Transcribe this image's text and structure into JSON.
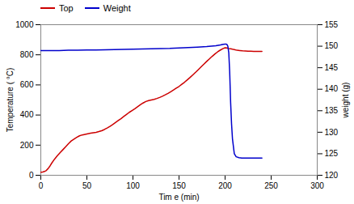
{
  "chart_data": {
    "type": "line",
    "xlabel": "Tim e (min)",
    "ylabel": "Temperature ( °C)",
    "y2label": "weight (g)",
    "xlim": [
      0,
      300
    ],
    "ylim": [
      0,
      1000
    ],
    "y2lim": [
      120,
      155
    ],
    "xticks": [
      0,
      50,
      100,
      150,
      200,
      250,
      300
    ],
    "yticks": [
      0,
      200,
      400,
      600,
      800,
      1000
    ],
    "y2ticks": [
      120,
      125,
      130,
      135,
      140,
      145,
      150,
      155
    ],
    "series": [
      {
        "name": "Top",
        "color": "#cc0000",
        "x": [
          0,
          2,
          4,
          6,
          8,
          10,
          12,
          15,
          18,
          21,
          24,
          27,
          30,
          33,
          36,
          39,
          42,
          45,
          48,
          51,
          54,
          57,
          60,
          63,
          66,
          69,
          72,
          75,
          78,
          81,
          84,
          87,
          90,
          93,
          96,
          99,
          102,
          105,
          108,
          111,
          114,
          117,
          120,
          123,
          126,
          129,
          132,
          135,
          138,
          141,
          144,
          147,
          150,
          153,
          156,
          159,
          162,
          165,
          168,
          171,
          174,
          177,
          180,
          183,
          186,
          189,
          192,
          195,
          198,
          200,
          202,
          204,
          206,
          208,
          210,
          213,
          216,
          219,
          222,
          225,
          228,
          231,
          234,
          237,
          240
        ],
        "values": [
          20,
          22,
          25,
          32,
          45,
          62,
          82,
          108,
          130,
          150,
          170,
          190,
          210,
          228,
          240,
          252,
          262,
          268,
          272,
          276,
          279,
          282,
          285,
          290,
          296,
          304,
          314,
          325,
          337,
          350,
          363,
          376,
          390,
          404,
          418,
          430,
          442,
          455,
          468,
          480,
          490,
          496,
          500,
          504,
          510,
          517,
          525,
          534,
          544,
          555,
          566,
          578,
          590,
          604,
          618,
          634,
          650,
          667,
          684,
          702,
          720,
          738,
          756,
          773,
          790,
          806,
          820,
          832,
          842,
          847,
          845,
          842,
          840,
          837,
          835,
          830,
          828,
          826,
          825,
          824,
          824,
          823,
          823,
          823,
          823
        ]
      },
      {
        "name": "Weight",
        "color": "#0000cc",
        "axis": "y2",
        "x": [
          0,
          10,
          20,
          30,
          40,
          50,
          60,
          70,
          80,
          90,
          100,
          110,
          120,
          130,
          140,
          150,
          160,
          170,
          180,
          190,
          195,
          198,
          200,
          201,
          202,
          203,
          204,
          205,
          206,
          207,
          208,
          210,
          212,
          215,
          218,
          220,
          225,
          230,
          235,
          240
        ],
        "values": [
          149.0,
          149.0,
          149.0,
          149.05,
          149.05,
          149.1,
          149.1,
          149.15,
          149.2,
          149.25,
          149.3,
          149.35,
          149.4,
          149.45,
          149.5,
          149.6,
          149.7,
          149.8,
          149.9,
          150.1,
          150.3,
          150.45,
          150.5,
          150.5,
          150.4,
          150.0,
          148.5,
          144.0,
          137.0,
          132.0,
          128.5,
          125.0,
          124.3,
          124.1,
          124.0,
          124.0,
          124.0,
          124.0,
          124.0,
          124.0
        ]
      }
    ]
  }
}
